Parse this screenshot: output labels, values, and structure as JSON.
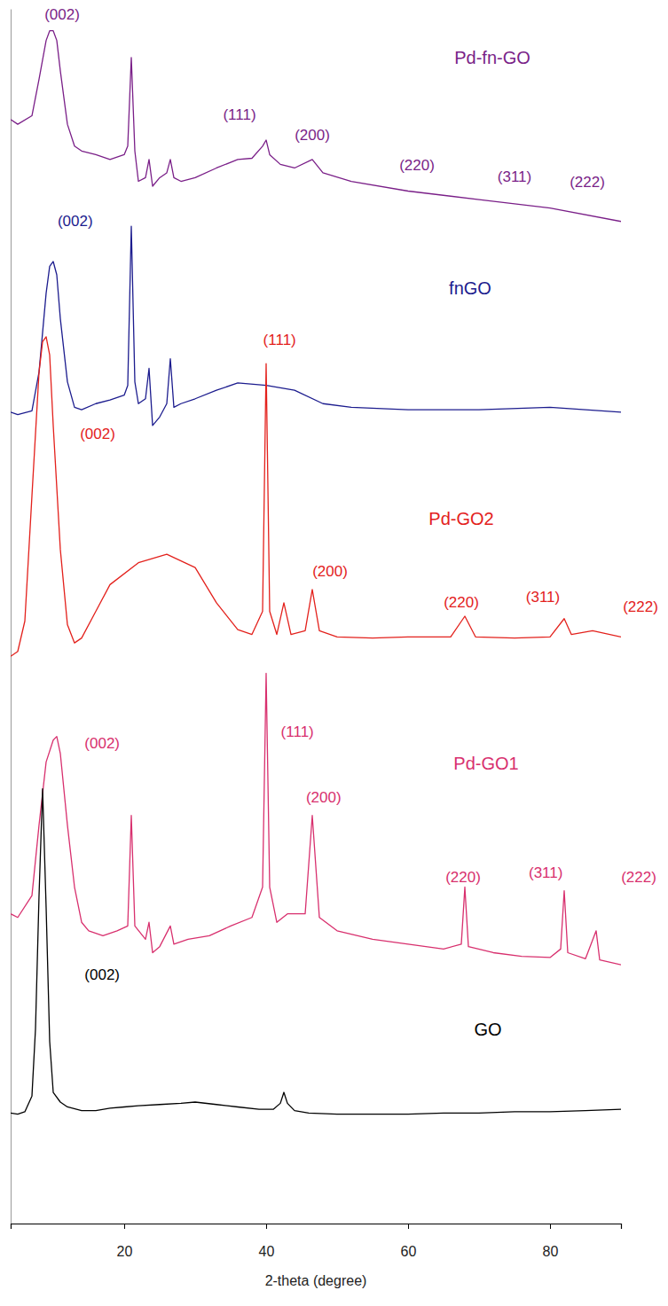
{
  "chart_data": {
    "type": "line",
    "x_label": "2-theta (degree)",
    "xlim": [
      4,
      90
    ],
    "xticks": [
      20,
      40,
      60,
      80
    ],
    "ylim": [
      0,
      100
    ],
    "yticks": [],
    "tick_labels": "x",
    "grid": false,
    "series": [
      {
        "name": "Pd-fn-GO",
        "color": "#7a1f88",
        "x": [
          4,
          5,
          7,
          8,
          9,
          9.5,
          10,
          10.5,
          11,
          12,
          13,
          14,
          16,
          18,
          20,
          20.5,
          21,
          21.5,
          22,
          23,
          23.5,
          24,
          25,
          26,
          26.5,
          27,
          28,
          30,
          33,
          36,
          38,
          39.5,
          40,
          40.5,
          42,
          44,
          46.5,
          48,
          52,
          60,
          70,
          80,
          90
        ],
        "values": [
          90.9,
          90.5,
          91.2,
          94.2,
          97.4,
          98.2,
          98.2,
          97.4,
          94.9,
          90.5,
          88.7,
          88.3,
          88,
          87.6,
          88,
          88.7,
          96,
          88.3,
          85.8,
          86.1,
          87.6,
          85.4,
          86.1,
          86.5,
          87.6,
          86.1,
          85.8,
          86.1,
          86.9,
          87.6,
          87.7,
          88.7,
          89.2,
          88,
          87.2,
          86.9,
          87.6,
          86.5,
          85.8,
          85,
          84.3,
          83.6,
          82.5
        ]
      },
      {
        "name": "fnGO",
        "color": "#1c1c8e",
        "x": [
          4,
          5,
          7,
          8,
          9,
          9.5,
          10,
          10.5,
          11,
          12,
          13,
          14,
          16,
          18,
          20,
          20.5,
          21,
          21.5,
          22,
          23,
          23.5,
          24,
          25,
          26,
          26.5,
          27,
          28,
          30,
          33,
          36,
          40,
          44,
          48,
          52,
          60,
          70,
          80,
          90
        ],
        "values": [
          66.8,
          66.6,
          66.9,
          70.1,
          76.6,
          78.8,
          79.2,
          78.1,
          74.5,
          69.3,
          67.2,
          67.0,
          67.5,
          67.8,
          68.2,
          69.0,
          82.1,
          69.3,
          67.5,
          67.9,
          70.4,
          65.7,
          66.4,
          67.5,
          71.2,
          67.2,
          67.5,
          67.9,
          68.6,
          69.2,
          69.0,
          68.6,
          67.5,
          67.2,
          67.0,
          67.0,
          67.2,
          66.8
        ]
      },
      {
        "name": "Pd-GO2",
        "color": "#e3211c",
        "x": [
          4,
          5,
          6,
          7,
          8,
          8.5,
          9,
          9.5,
          10,
          11,
          12,
          13,
          14,
          16,
          18,
          22,
          26,
          30,
          33,
          36,
          38,
          39.5,
          40,
          40.5,
          41.5,
          42.5,
          43.5,
          45.5,
          46.5,
          47.5,
          50,
          55,
          60,
          66,
          68,
          69.5,
          75,
          80,
          82,
          83,
          86,
          90
        ],
        "values": [
          46.7,
          47.1,
          49.6,
          59.9,
          70.1,
          72.6,
          73.0,
          71.5,
          65.7,
          55.5,
          49.3,
          47.8,
          48.2,
          50.4,
          52.6,
          54.4,
          55.1,
          54.0,
          51.1,
          48.9,
          48.5,
          50.4,
          70.8,
          50.4,
          48.5,
          51.1,
          48.5,
          48.8,
          52.2,
          48.8,
          48.3,
          48.2,
          48.3,
          48.3,
          50.0,
          48.3,
          48.2,
          48.3,
          49.8,
          48.5,
          48.8,
          48.3
        ]
      },
      {
        "name": "Pd-GO1",
        "color": "#d8306e",
        "x": [
          4,
          5,
          7,
          8,
          9,
          10,
          10.5,
          11,
          12,
          13,
          14,
          15,
          17,
          19,
          20.5,
          21,
          21.5,
          23,
          23.5,
          24,
          25,
          26.5,
          27,
          29,
          32,
          35,
          38,
          39.5,
          40,
          40.5,
          41.5,
          43,
          45.5,
          46.5,
          47.5,
          50,
          55,
          60,
          65,
          67.5,
          68,
          68.5,
          72,
          76,
          80,
          81.5,
          82,
          82.5,
          85,
          86.5,
          87,
          90
        ],
        "values": [
          25.5,
          25.2,
          27.0,
          32.8,
          38.0,
          39.8,
          40.1,
          38.7,
          32.8,
          27.7,
          24.8,
          24.1,
          23.7,
          24.1,
          24.5,
          33.6,
          24.5,
          23.4,
          24.8,
          22.3,
          22.8,
          24.5,
          23.0,
          23.4,
          23.7,
          24.5,
          25.2,
          27.7,
          45.3,
          27.7,
          24.8,
          25.5,
          25.5,
          33.6,
          25.2,
          24.1,
          23.4,
          23.0,
          22.6,
          23.0,
          27.7,
          22.8,
          22.3,
          22.0,
          21.9,
          22.6,
          27.4,
          22.3,
          21.8,
          24.1,
          21.7,
          21.3
        ]
      },
      {
        "name": "GO",
        "color": "#000000",
        "x": [
          4,
          5,
          6,
          7,
          7.5,
          8,
          8.5,
          9,
          9.5,
          10,
          11,
          12,
          14,
          16,
          18,
          20,
          22,
          25,
          28,
          30,
          33,
          36,
          39,
          41,
          42,
          42.5,
          43,
          44,
          46,
          50,
          55,
          60,
          65,
          70,
          75,
          80,
          85,
          90
        ],
        "values": [
          9.1,
          9.0,
          9.2,
          10.5,
          16,
          27,
          35.8,
          26,
          15,
          10.8,
          10.0,
          9.6,
          9.3,
          9.3,
          9.5,
          9.6,
          9.7,
          9.8,
          9.9,
          10.0,
          9.8,
          9.6,
          9.4,
          9.4,
          9.9,
          10.8,
          9.9,
          9.3,
          9.1,
          9.0,
          9.0,
          9.0,
          9.1,
          9.1,
          9.2,
          9.2,
          9.3,
          9.4
        ]
      }
    ],
    "annotations": [
      {
        "text": "(002)",
        "x": 11.25,
        "y": 99.1,
        "color": "#7a1f88"
      },
      {
        "text": "(111)",
        "x": 36.25,
        "y": 90.9,
        "color": "#7a1f88"
      },
      {
        "text": "(200)",
        "x": 46.5,
        "y": 89.2,
        "color": "#7a1f88"
      },
      {
        "text": "(220)",
        "x": 61.25,
        "y": 86.7,
        "color": "#7a1f88"
      },
      {
        "text": "(311)",
        "x": 75,
        "y": 85.8,
        "color": "#7a1f88"
      },
      {
        "text": "(222)",
        "x": 85.25,
        "y": 85.3,
        "color": "#7a1f88"
      },
      {
        "text": "(002)",
        "x": 13.1,
        "y": 82.1,
        "color": "#1c1c8e"
      },
      {
        "text": "(002)",
        "x": 16.25,
        "y": 64.6,
        "color": "#e3211c"
      },
      {
        "text": "(111)",
        "x": 41.9,
        "y": 72.3,
        "color": "#e3211c"
      },
      {
        "text": "(200)",
        "x": 49,
        "y": 53.3,
        "color": "#e3211c"
      },
      {
        "text": "(220)",
        "x": 67.5,
        "y": 50.7,
        "color": "#e3211c"
      },
      {
        "text": "(311)",
        "x": 79,
        "y": 51.2,
        "color": "#e3211c"
      },
      {
        "text": "(222)",
        "x": 92.75,
        "y": 50.4,
        "color": "#e3211c"
      },
      {
        "text": "(002)",
        "x": 16.9,
        "y": 39.1,
        "color": "#d8306e"
      },
      {
        "text": "(111)",
        "x": 44.4,
        "y": 40.1,
        "color": "#d8306e"
      },
      {
        "text": "(200)",
        "x": 48.1,
        "y": 34.7,
        "color": "#d8306e"
      },
      {
        "text": "(220)",
        "x": 67.75,
        "y": 28.1,
        "color": "#d8306e"
      },
      {
        "text": "(311)",
        "x": 79.4,
        "y": 28.5,
        "color": "#d8306e"
      },
      {
        "text": "(222)",
        "x": 92.5,
        "y": 28.1,
        "color": "#d8306e"
      },
      {
        "text": "(002)",
        "x": 16.9,
        "y": 20.1,
        "color": "#000000"
      }
    ]
  }
}
